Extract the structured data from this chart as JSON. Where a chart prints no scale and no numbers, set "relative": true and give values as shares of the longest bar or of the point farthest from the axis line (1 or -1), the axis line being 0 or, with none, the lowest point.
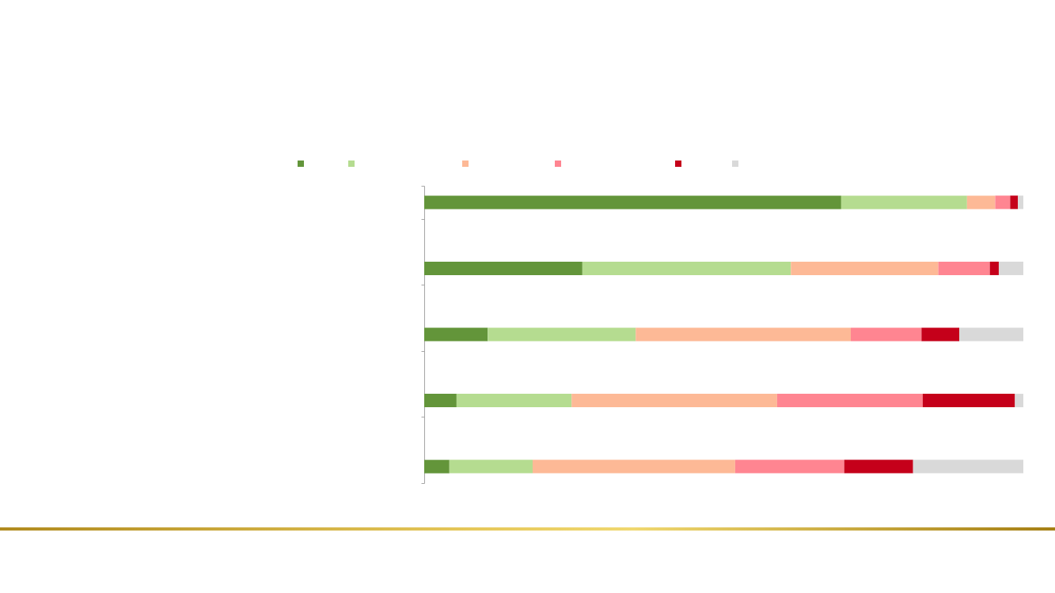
{
  "chart_data": {
    "type": "bar",
    "orientation": "horizontal",
    "stacked": true,
    "relative": true,
    "categories": [
      null,
      null,
      null,
      null,
      null
    ],
    "series": [
      {
        "color": "#63953a",
        "values": [
          0.696,
          0.264,
          0.106,
          0.054,
          0.042
        ]
      },
      {
        "color": "#b5dc90",
        "values": [
          0.21,
          0.348,
          0.247,
          0.192,
          0.139
        ]
      },
      {
        "color": "#fdb996",
        "values": [
          0.047,
          0.246,
          0.359,
          0.343,
          0.338
        ]
      },
      {
        "color": "#ff8591",
        "values": [
          0.025,
          0.086,
          0.118,
          0.243,
          0.182
        ]
      },
      {
        "color": "#c5001a",
        "values": [
          0.013,
          0.015,
          0.063,
          0.154,
          0.115
        ]
      },
      {
        "color": "#d9d9d9",
        "values": [
          0.009,
          0.041,
          0.107,
          0.014,
          0.184
        ]
      }
    ]
  }
}
